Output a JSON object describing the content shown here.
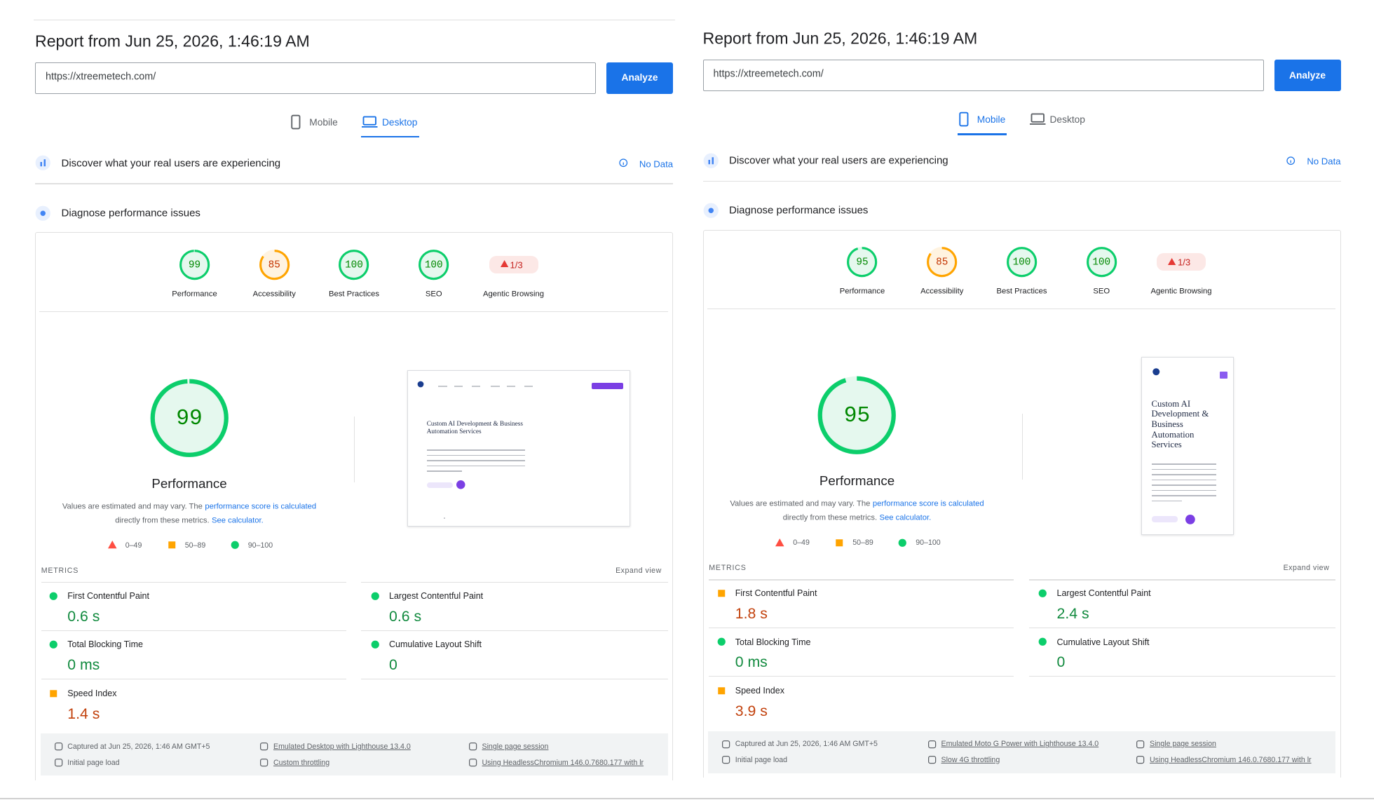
{
  "panels": [
    {
      "title": "Report from Jun 25, 2026, 1:46:19 AM",
      "url": "https://xtreemetech.com/",
      "button": "Analyze",
      "tabs": [
        {
          "label": "Mobile",
          "selected": false
        },
        {
          "label": "Desktop",
          "selected": true
        }
      ],
      "field_data": {
        "text": "Discover what your real users are experiencing",
        "status": "No Data"
      },
      "diagnose": "Diagnose performance issues",
      "categories": [
        {
          "score": 99,
          "label": "Performance"
        },
        {
          "score": 85,
          "label": "Accessibility"
        },
        {
          "score": 100,
          "label": "Best Practices"
        },
        {
          "score": 100,
          "label": "SEO"
        },
        {
          "score": "1/3",
          "label": "Agentic Browsing"
        }
      ],
      "note": {
        "text1": "Values are estimated and may vary. The",
        "link1": "performance score is calculated",
        "text2": "directly from these metrics.",
        "link2": "See calculator."
      },
      "legend": [
        "0–49",
        "50–89",
        "90–100"
      ],
      "preview": {
        "heading": "Custom AI Development & Business Automation Services"
      },
      "metrics_title": "METRICS",
      "expand": "Expand view",
      "metrics": [
        {
          "name": "First Contentful Paint",
          "value": "0.6 s",
          "rating": "good"
        },
        {
          "name": "Largest Contentful Paint",
          "value": "0.6 s",
          "rating": "good"
        },
        {
          "name": "Total Blocking Time",
          "value": "0 ms",
          "rating": "good"
        },
        {
          "name": "Cumulative Layout Shift",
          "value": "0",
          "rating": "good"
        },
        {
          "name": "Speed Index",
          "value": "1.4 s",
          "rating": "average"
        }
      ],
      "footer": [
        "Captured at Jun 25, 2026, 1:46 AM GMT+5",
        "Emulated Desktop with Lighthouse 13.4.0",
        "Single page session",
        "Initial page load",
        "Custom throttling",
        "Using HeadlessChromium 146.0.7680.177 with lr"
      ]
    },
    {
      "title": "Report from Jun 25, 2026, 1:46:19 AM",
      "url": "https://xtreemetech.com/",
      "button": "Analyze",
      "tabs": [
        {
          "label": "Mobile",
          "selected": true
        },
        {
          "label": "Desktop",
          "selected": false
        }
      ],
      "field_data": {
        "text": "Discover what your real users are experiencing",
        "status": "No Data"
      },
      "diagnose": "Diagnose performance issues",
      "categories": [
        {
          "score": 95,
          "label": "Performance"
        },
        {
          "score": 85,
          "label": "Accessibility"
        },
        {
          "score": 100,
          "label": "Best Practices"
        },
        {
          "score": 100,
          "label": "SEO"
        },
        {
          "score": "1/3",
          "label": "Agentic Browsing"
        }
      ],
      "note": {
        "text1": "Values are estimated and may vary. The",
        "link1": "performance score is calculated",
        "text2": "directly from these metrics.",
        "link2": "See calculator."
      },
      "legend": [
        "0–49",
        "50–89",
        "90–100"
      ],
      "preview": {
        "heading": "Custom AI Development & Business Automation Services"
      },
      "metrics_title": "METRICS",
      "expand": "Expand view",
      "metrics": [
        {
          "name": "First Contentful Paint",
          "value": "1.8 s",
          "rating": "average"
        },
        {
          "name": "Largest Contentful Paint",
          "value": "2.4 s",
          "rating": "good"
        },
        {
          "name": "Total Blocking Time",
          "value": "0 ms",
          "rating": "good"
        },
        {
          "name": "Cumulative Layout Shift",
          "value": "0",
          "rating": "good"
        },
        {
          "name": "Speed Index",
          "value": "3.9 s",
          "rating": "average"
        }
      ],
      "footer": [
        "Captured at Jun 25, 2026, 1:46 AM GMT+5",
        "Emulated Moto G Power with Lighthouse 13.4.0",
        "Single page session",
        "Initial page load",
        "Slow 4G throttling",
        "Using HeadlessChromium 146.0.7680.177 with lr"
      ]
    }
  ]
}
